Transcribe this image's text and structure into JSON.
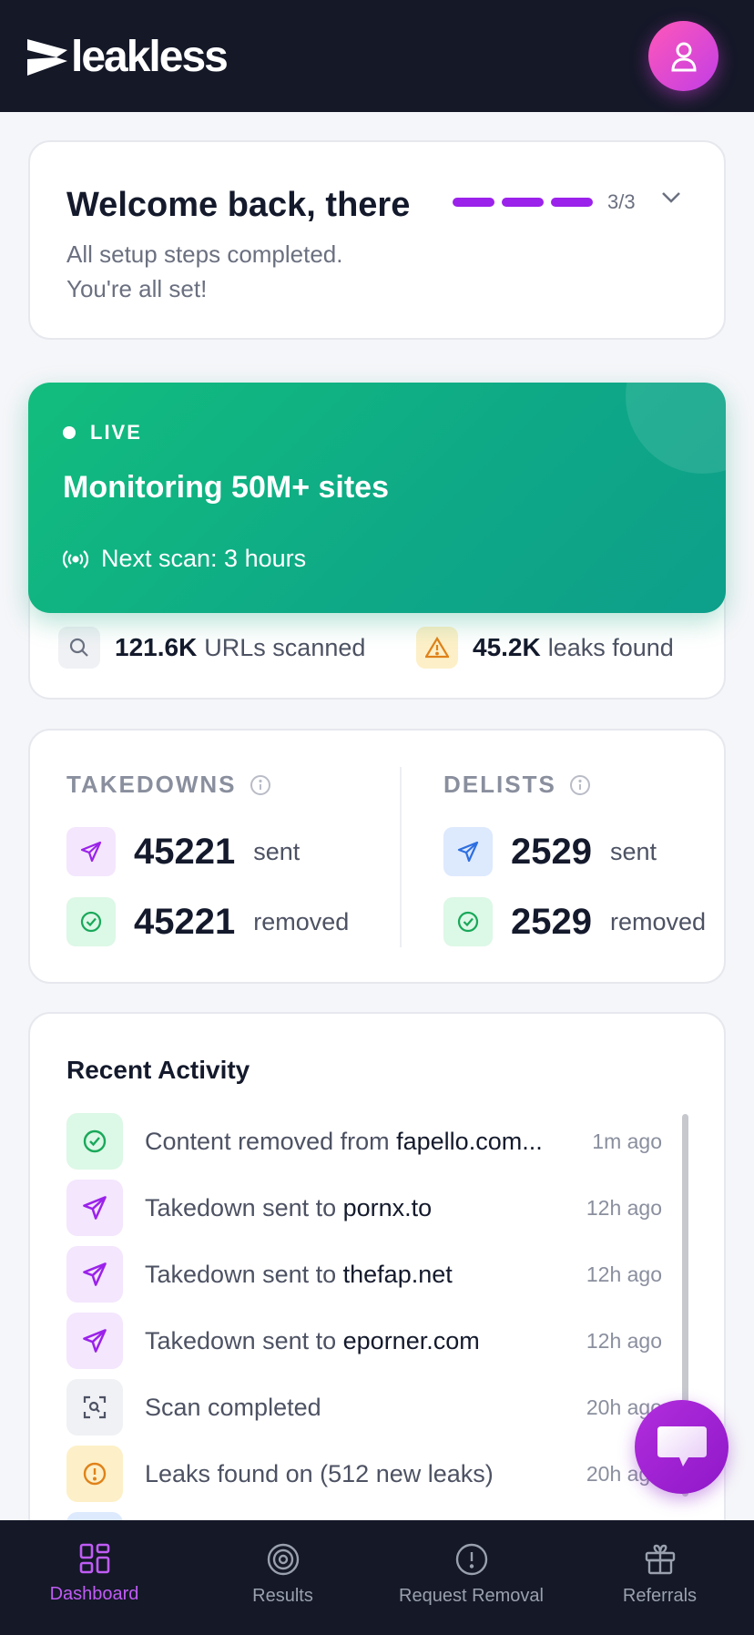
{
  "header": {
    "brand": "leakless",
    "avatar_icon": "user-icon"
  },
  "welcome": {
    "title": "Welcome back, there",
    "subtitle_line1": "All setup steps completed.",
    "subtitle_line2": "You're all set!",
    "progress_text": "3/3",
    "progress_completed": 3,
    "progress_total": 3
  },
  "live": {
    "badge": "LIVE",
    "title": "Monitoring 50M+ sites",
    "next_scan": "Next scan: 3 hours",
    "gradient": [
      "#12bd7d",
      "#0d9f8a"
    ]
  },
  "scan_stats": {
    "urls_num": "121.6K",
    "urls_label": "URLs scanned",
    "leaks_num": "45.2K",
    "leaks_label": "leaks found"
  },
  "takedowns": {
    "heading": "TAKEDOWNS",
    "sent_num": "45221",
    "sent_label": "sent",
    "removed_num": "45221",
    "removed_label": "removed"
  },
  "delists": {
    "heading": "DELISTS",
    "sent_num": "2529",
    "sent_label": "sent",
    "removed_num": "2529",
    "removed_label": "removed"
  },
  "activity": {
    "title": "Recent Activity",
    "items": [
      {
        "prefix": "Content removed from ",
        "target": "fapello.com...",
        "time": "1m ago",
        "icon": "check-circle-icon"
      },
      {
        "prefix": "Takedown sent to ",
        "target": "pornx.to",
        "time": "12h ago",
        "icon": "send-icon"
      },
      {
        "prefix": "Takedown sent to ",
        "target": "thefap.net",
        "time": "12h ago",
        "icon": "send-icon"
      },
      {
        "prefix": "Takedown sent to ",
        "target": "eporner.com",
        "time": "12h ago",
        "icon": "send-icon"
      },
      {
        "prefix": "Scan completed",
        "target": "",
        "time": "20h ago",
        "icon": "scan-icon"
      },
      {
        "prefix": "Leaks found on  (512 new leaks)",
        "target": "",
        "time": "20h ago",
        "icon": "alert-circle-icon"
      }
    ]
  },
  "nav": {
    "items": [
      {
        "label": "Dashboard",
        "icon": "dashboard-icon",
        "active": true
      },
      {
        "label": "Results",
        "icon": "target-icon",
        "active": false
      },
      {
        "label": "Request Removal",
        "icon": "alert-circle-icon",
        "active": false
      },
      {
        "label": "Referrals",
        "icon": "gift-icon",
        "active": false
      }
    ]
  },
  "colors": {
    "accent": "#9b22ea",
    "header_bg": "#141827",
    "live_green": "#12bd7d",
    "nav_active": "#c05cf5"
  }
}
